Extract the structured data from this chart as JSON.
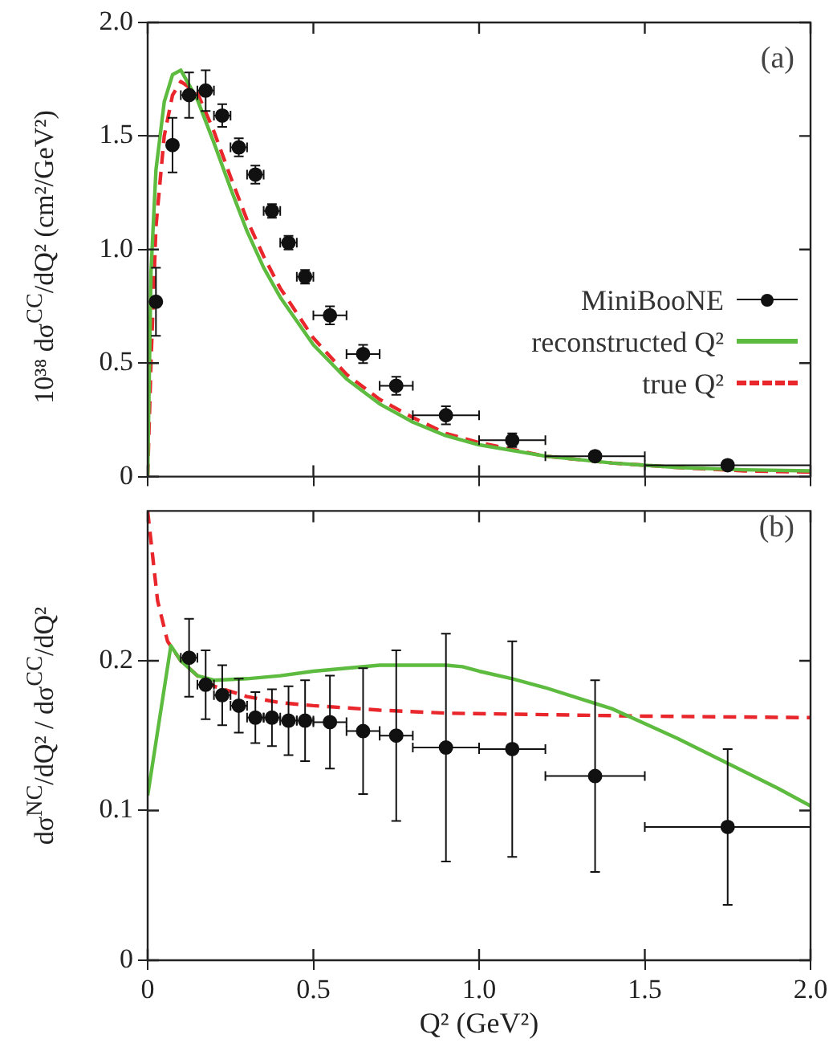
{
  "chart_data": [
    {
      "type": "line",
      "ylabel": "10³⁸ dσ$^{CC}$/dQ²  (cm²/GeV²)",
      "annotations": [
        "(a)"
      ],
      "legend": "right",
      "tick_labels": "y",
      "xlim": [
        0,
        2
      ],
      "xticks": [
        0,
        0.5,
        1,
        1.5,
        2
      ],
      "ylim": [
        0,
        2
      ],
      "yticks": [
        0,
        0.5,
        {
          "value": 1,
          "label": "1.0"
        },
        1.5,
        {
          "value": 2,
          "label": "2.0"
        }
      ],
      "series": [
        {
          "name": "MiniBooNE",
          "type": "scatter",
          "marker": "circle",
          "color": "#111111",
          "x": [
            0.025,
            0.075,
            0.125,
            0.175,
            0.225,
            0.275,
            0.325,
            0.375,
            0.425,
            0.475,
            0.55,
            0.65,
            0.75,
            0.9,
            1.1,
            1.35,
            1.75
          ],
          "values": [
            0.77,
            1.46,
            1.68,
            1.7,
            1.59,
            1.45,
            1.33,
            1.17,
            1.03,
            0.88,
            0.71,
            0.54,
            0.4,
            0.27,
            0.16,
            0.09,
            0.05
          ],
          "errors": [
            0.15,
            0.12,
            0.1,
            0.09,
            0.05,
            0.04,
            0.04,
            0.03,
            0.03,
            0.03,
            0.04,
            0.04,
            0.04,
            0.04,
            0.03,
            0.02,
            0.02
          ],
          "xerrors": [
            null,
            null,
            0.025,
            0.025,
            0.025,
            0.025,
            0.025,
            0.025,
            0.025,
            0.025,
            0.05,
            0.05,
            0.05,
            0.1,
            0.1,
            0.15,
            0.25
          ]
        },
        {
          "name": "reconstructed Q²",
          "color": "#5dbb3f",
          "line_style": "solid",
          "marker": "none",
          "x": [
            0,
            0.01,
            0.025,
            0.05,
            0.075,
            0.1,
            0.15,
            0.2,
            0.25,
            0.3,
            0.35,
            0.4,
            0.5,
            0.6,
            0.7,
            0.8,
            0.9,
            1.0,
            1.2,
            1.4,
            1.6,
            1.8,
            2.0
          ],
          "values": [
            0,
            0.9,
            1.35,
            1.65,
            1.77,
            1.79,
            1.66,
            1.47,
            1.27,
            1.08,
            0.92,
            0.79,
            0.58,
            0.43,
            0.32,
            0.24,
            0.18,
            0.14,
            0.09,
            0.06,
            0.04,
            0.03,
            0.025
          ]
        },
        {
          "name": "true Q²",
          "color": "#e8262b",
          "line_style": "dashed",
          "marker": "none",
          "x": [
            0,
            0.01,
            0.025,
            0.05,
            0.075,
            0.1,
            0.15,
            0.2,
            0.25,
            0.3,
            0.35,
            0.4,
            0.5,
            0.6,
            0.7,
            0.8,
            0.9,
            1.0,
            1.2,
            1.4,
            1.6,
            1.8,
            2.0
          ],
          "values": [
            0,
            0.5,
            1.1,
            1.5,
            1.68,
            1.74,
            1.69,
            1.52,
            1.32,
            1.13,
            0.97,
            0.83,
            0.61,
            0.45,
            0.34,
            0.26,
            0.19,
            0.15,
            0.09,
            0.06,
            0.04,
            0.025,
            0.02
          ]
        }
      ]
    },
    {
      "type": "line",
      "xlabel": "Q² (GeV²)",
      "ylabel": "dσ$^{NC}$/dQ² / dσ$^{CC}$/dQ²",
      "annotations": [
        "(b)"
      ],
      "xlim": [
        0,
        2
      ],
      "xticks": [
        0,
        0.5,
        {
          "value": 1,
          "label": "1.0"
        },
        1.5,
        {
          "value": 2,
          "label": "2.0"
        }
      ],
      "ylim": [
        0,
        0.3
      ],
      "yticks": [
        0,
        0.1,
        0.2
      ],
      "series": [
        {
          "type": "scatter",
          "marker": "circle",
          "color": "#111111",
          "x": [
            0.125,
            0.175,
            0.225,
            0.275,
            0.325,
            0.375,
            0.425,
            0.475,
            0.55,
            0.65,
            0.75,
            0.9,
            1.1,
            1.35,
            1.75
          ],
          "values": [
            0.202,
            0.184,
            0.177,
            0.17,
            0.162,
            0.162,
            0.16,
            0.16,
            0.159,
            0.153,
            0.15,
            0.142,
            0.141,
            0.123,
            0.089
          ],
          "errors": [
            0.026,
            0.023,
            0.02,
            0.018,
            0.017,
            0.019,
            0.023,
            0.027,
            0.031,
            0.042,
            0.057,
            0.076,
            0.072,
            0.064,
            0.052
          ],
          "xerrors": [
            0.025,
            0.025,
            0.025,
            0.025,
            0.025,
            0.025,
            0.025,
            0.025,
            0.05,
            0.05,
            0.05,
            0.1,
            0.1,
            0.15,
            0.25
          ]
        },
        {
          "color": "#5dbb3f",
          "line_style": "solid",
          "marker": "none",
          "x": [
            0,
            0.07,
            0.1,
            0.15,
            0.2,
            0.3,
            0.4,
            0.5,
            0.6,
            0.7,
            0.8,
            0.9,
            0.95,
            1.0,
            1.1,
            1.2,
            1.3,
            1.4,
            1.5,
            1.6,
            1.7,
            1.8,
            1.9,
            2.0
          ],
          "values": [
            0.11,
            0.21,
            0.2,
            0.19,
            0.187,
            0.188,
            0.19,
            0.193,
            0.195,
            0.197,
            0.197,
            0.197,
            0.196,
            0.193,
            0.188,
            0.182,
            0.175,
            0.168,
            0.158,
            0.148,
            0.137,
            0.126,
            0.115,
            0.103
          ]
        },
        {
          "color": "#e8262b",
          "line_style": "dashed",
          "marker": "none",
          "x": [
            0,
            0.01,
            0.03,
            0.06,
            0.1,
            0.15,
            0.2,
            0.3,
            0.4,
            0.5,
            0.7,
            0.9,
            1.2,
            1.5,
            2.0
          ],
          "values": [
            0.3,
            0.28,
            0.24,
            0.213,
            0.2,
            0.19,
            0.183,
            0.176,
            0.172,
            0.17,
            0.167,
            0.165,
            0.164,
            0.163,
            0.162
          ]
        }
      ]
    }
  ]
}
